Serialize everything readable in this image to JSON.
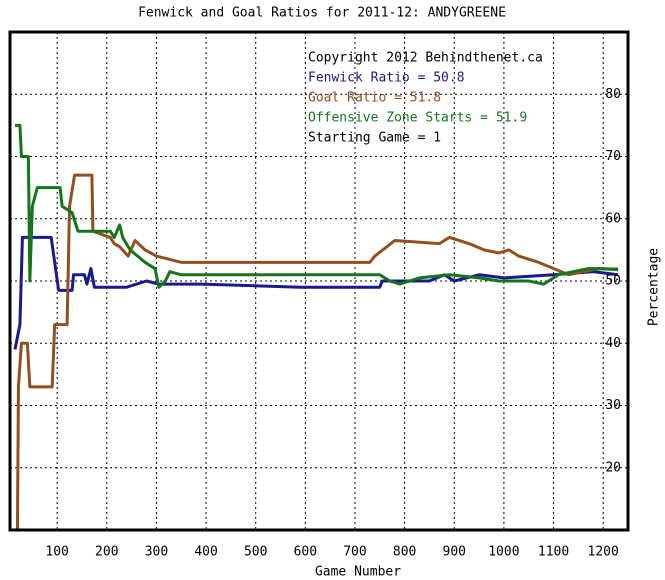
{
  "chart_data": {
    "type": "line",
    "title": "Fenwick and Goal Ratios for 2011-12: ANDYGREENE",
    "x_label": "Game Number",
    "y_label": "Percentage",
    "annotations": [
      "Copyright 2012 Behindthenet.ca",
      "Starting Game = 1"
    ],
    "xlim": [
      5,
      1250
    ],
    "ylim": [
      10,
      90
    ],
    "xticks": [
      100,
      200,
      300,
      400,
      500,
      600,
      700,
      800,
      900,
      1000,
      1100,
      1200
    ],
    "yticks": [
      20,
      30,
      40,
      50,
      60,
      70,
      80
    ],
    "grid": true,
    "series": [
      {
        "name": "Fenwick Ratio = 50.8",
        "color": "#1a1a8c",
        "x": [
          15,
          25,
          30,
          88,
          95,
          103,
          130,
          133,
          155,
          160,
          168,
          175,
          240,
          280,
          305,
          390,
          590,
          750,
          755,
          850,
          880,
          900,
          950,
          1000,
          1100,
          1180,
          1230
        ],
        "values": [
          39,
          43,
          57,
          57,
          53,
          48.5,
          48.5,
          51,
          51,
          49.5,
          52,
          49,
          49,
          50,
          49.5,
          49.5,
          49,
          49,
          50,
          50,
          51,
          50,
          51,
          50.5,
          51,
          51.5,
          51
        ]
      },
      {
        "name": "Goal Ratio = 51.8",
        "color": "#93501e",
        "x": [
          20,
          22,
          28,
          40,
          45,
          90,
          95,
          120,
          125,
          135,
          170,
          172,
          207,
          215,
          226,
          243,
          257,
          277,
          300,
          350,
          730,
          740,
          780,
          870,
          890,
          930,
          960,
          990,
          1010,
          1030,
          1070,
          1100,
          1130,
          1190,
          1230
        ],
        "values": [
          10,
          33,
          40,
          40,
          33,
          33,
          43,
          43,
          62,
          67,
          67,
          58,
          57,
          56,
          55.5,
          54,
          56.5,
          55,
          54,
          53,
          53,
          54,
          56.5,
          56,
          57,
          56,
          55,
          54.5,
          55,
          54,
          53,
          52,
          51,
          52,
          51.8
        ]
      },
      {
        "name": "Offensive Zone Starts = 51.9",
        "color": "#13761a",
        "x": [
          15,
          25,
          28,
          42,
          45,
          50,
          60,
          106,
          110,
          130,
          142,
          207,
          215,
          226,
          232,
          247,
          277,
          297,
          305,
          318,
          327,
          350,
          750,
          770,
          790,
          830,
          890,
          950,
          990,
          1050,
          1080,
          1110,
          1170,
          1230
        ],
        "values": [
          75,
          75,
          70,
          70,
          50,
          62,
          65,
          65,
          62,
          61,
          58,
          58,
          57,
          59,
          57,
          55,
          53,
          52,
          49,
          50,
          51.5,
          51,
          51,
          50,
          49.5,
          50.5,
          51,
          50.5,
          50,
          50,
          49.5,
          51,
          52,
          51.9
        ]
      }
    ]
  }
}
